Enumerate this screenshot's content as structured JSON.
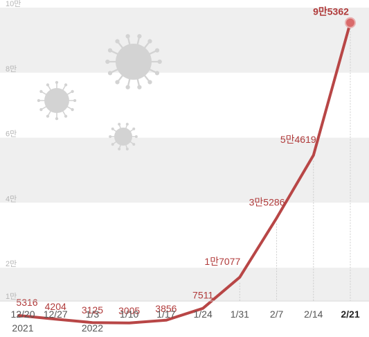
{
  "chart_data": {
    "type": "line",
    "title": "",
    "xlabel": "",
    "ylabel": "",
    "ylim": [
      10000,
      100000
    ],
    "y_ticks": [
      {
        "value": 10000,
        "label": "1만"
      },
      {
        "value": 20000,
        "label": "2만"
      },
      {
        "value": 40000,
        "label": "4만"
      },
      {
        "value": 60000,
        "label": "6만"
      },
      {
        "value": 80000,
        "label": "8만"
      },
      {
        "value": 100000,
        "label": "10만"
      }
    ],
    "categories": [
      "12/20",
      "12/27",
      "1/3",
      "1/10",
      "1/17",
      "1/24",
      "1/31",
      "2/7",
      "2/14",
      "2/21"
    ],
    "year_labels": {
      "12/20": "2021",
      "1/3": "2022"
    },
    "values": [
      5316,
      4204,
      3125,
      3005,
      3856,
      7511,
      17077,
      35286,
      54619,
      95362
    ],
    "value_labels": [
      "5316",
      "4204",
      "3125",
      "3005",
      "3856",
      "7511",
      "1만7077",
      "3만5286",
      "5만4619",
      "9만5362"
    ],
    "highlight_last": true,
    "grid": "alternating horizontal bands",
    "colors": {
      "line": "#b84646",
      "label": "#b03a3a",
      "band": "#efefef",
      "marker": "#d96a6a",
      "virus": "#d3d3d3"
    }
  }
}
